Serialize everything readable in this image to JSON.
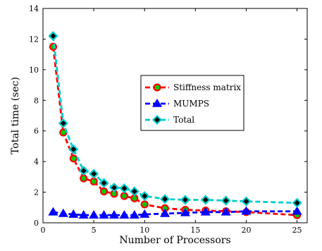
{
  "chart_data": {
    "type": "line",
    "title": "",
    "xlabel": "Number of Processors",
    "ylabel": "Total time (sec)",
    "xlim": [
      0,
      26
    ],
    "ylim": [
      0,
      14
    ],
    "xticks": [
      0,
      5,
      10,
      15,
      20,
      25
    ],
    "yticks": [
      0,
      2,
      4,
      6,
      8,
      10,
      12,
      14
    ],
    "grid": false,
    "legend_position": "center-right",
    "x": [
      1,
      2,
      3,
      4,
      5,
      6,
      7,
      8,
      9,
      10,
      12,
      14,
      16,
      18,
      20,
      25
    ],
    "series": [
      {
        "name": "Stiffness matrix",
        "values": [
          11.5,
          5.9,
          4.2,
          2.9,
          2.7,
          2.05,
          1.9,
          1.75,
          1.6,
          1.2,
          0.95,
          0.85,
          0.8,
          0.75,
          0.7,
          0.5
        ],
        "line_color": "#ff0000",
        "marker": "circle",
        "marker_fill": "#00cc00",
        "marker_edge": "#ff0000"
      },
      {
        "name": "MUMPS",
        "values": [
          0.7,
          0.6,
          0.55,
          0.5,
          0.5,
          0.5,
          0.5,
          0.5,
          0.5,
          0.55,
          0.6,
          0.65,
          0.7,
          0.7,
          0.75,
          0.75
        ],
        "line_color": "#0000ff",
        "marker": "triangle",
        "marker_fill": "#0000ff",
        "marker_edge": "#0000ff"
      },
      {
        "name": "Total",
        "values": [
          12.2,
          6.5,
          4.8,
          3.4,
          3.2,
          2.6,
          2.3,
          2.25,
          2.05,
          1.75,
          1.55,
          1.5,
          1.5,
          1.45,
          1.4,
          1.3
        ],
        "line_color": "#00cccc",
        "marker": "diamond",
        "marker_fill": "#000000",
        "marker_edge": "#00cccc"
      }
    ]
  }
}
